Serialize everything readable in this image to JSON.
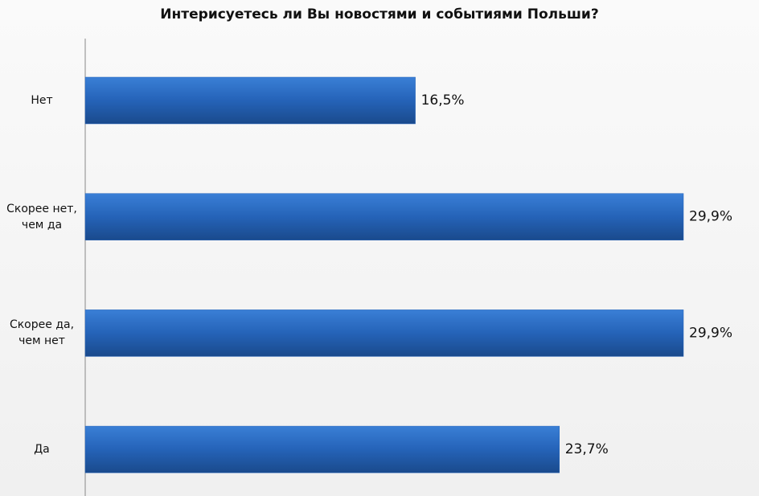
{
  "chart_data": {
    "type": "bar",
    "orientation": "horizontal",
    "title": "Интерисуетесь ли Вы новостями и событиями Польши?",
    "categories": [
      "Нет",
      "Скорее нет, чем да",
      "Скорее да, чем нет",
      "Да"
    ],
    "values": [
      16.5,
      29.9,
      29.9,
      23.7
    ],
    "value_labels": [
      "16,5%",
      "29,9%",
      "29,9%",
      "23,7%"
    ],
    "color": "#2563b8"
  }
}
